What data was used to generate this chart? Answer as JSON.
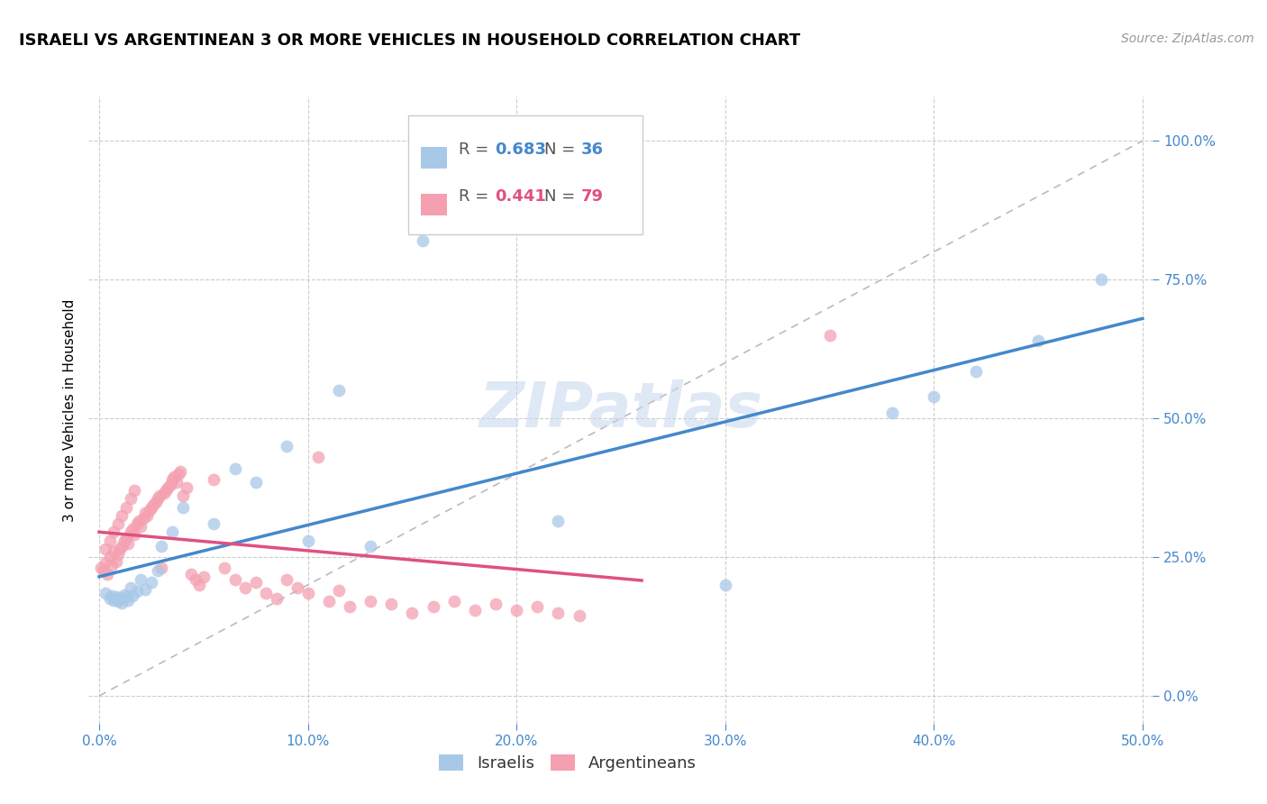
{
  "title": "ISRAELI VS ARGENTINEAN 3 OR MORE VEHICLES IN HOUSEHOLD CORRELATION CHART",
  "source": "Source: ZipAtlas.com",
  "ylabel": "3 or more Vehicles in Household",
  "watermark": "ZIPatlas",
  "xlim": [
    -0.005,
    0.505
  ],
  "ylim": [
    -0.05,
    1.08
  ],
  "x_ticks": [
    0.0,
    0.1,
    0.2,
    0.3,
    0.4,
    0.5
  ],
  "x_tick_labels": [
    "0.0%",
    "10.0%",
    "20.0%",
    "30.0%",
    "40.0%",
    "50.0%"
  ],
  "y_ticks": [
    0.0,
    0.25,
    0.5,
    0.75,
    1.0
  ],
  "y_tick_labels": [
    "0.0%",
    "25.0%",
    "50.0%",
    "75.0%",
    "100.0%"
  ],
  "israelis_R": 0.683,
  "israelis_N": 36,
  "argentineans_R": 0.441,
  "argentineans_N": 79,
  "israeli_color": "#a8c8e8",
  "argentinean_color": "#f4a0b0",
  "israeli_line_color": "#4488cc",
  "argentinean_line_color": "#e05080",
  "diagonal_color": "#bbbbbb",
  "title_fontsize": 13,
  "source_fontsize": 10,
  "axis_label_fontsize": 11,
  "tick_fontsize": 11,
  "legend_fontsize": 13,
  "watermark_fontsize": 50,
  "israelis_x": [
    0.003,
    0.005,
    0.006,
    0.007,
    0.008,
    0.009,
    0.01,
    0.011,
    0.012,
    0.013,
    0.014,
    0.015,
    0.016,
    0.018,
    0.02,
    0.022,
    0.025,
    0.028,
    0.03,
    0.035,
    0.04,
    0.055,
    0.065,
    0.075,
    0.09,
    0.1,
    0.115,
    0.13,
    0.155,
    0.22,
    0.3,
    0.38,
    0.4,
    0.42,
    0.45,
    0.48
  ],
  "israelis_y": [
    0.185,
    0.175,
    0.18,
    0.172,
    0.178,
    0.17,
    0.175,
    0.168,
    0.182,
    0.178,
    0.172,
    0.195,
    0.18,
    0.188,
    0.21,
    0.192,
    0.205,
    0.225,
    0.27,
    0.295,
    0.34,
    0.31,
    0.41,
    0.385,
    0.45,
    0.28,
    0.55,
    0.27,
    0.82,
    0.315,
    0.2,
    0.51,
    0.54,
    0.585,
    0.64,
    0.75
  ],
  "argentineans_x": [
    0.001,
    0.002,
    0.003,
    0.004,
    0.005,
    0.006,
    0.007,
    0.008,
    0.009,
    0.01,
    0.011,
    0.012,
    0.013,
    0.014,
    0.015,
    0.016,
    0.017,
    0.018,
    0.019,
    0.02,
    0.021,
    0.022,
    0.023,
    0.024,
    0.025,
    0.026,
    0.027,
    0.028,
    0.029,
    0.03,
    0.031,
    0.032,
    0.033,
    0.034,
    0.035,
    0.036,
    0.037,
    0.038,
    0.039,
    0.04,
    0.042,
    0.044,
    0.046,
    0.048,
    0.05,
    0.055,
    0.06,
    0.065,
    0.07,
    0.075,
    0.08,
    0.085,
    0.09,
    0.095,
    0.1,
    0.105,
    0.11,
    0.115,
    0.12,
    0.13,
    0.14,
    0.15,
    0.16,
    0.17,
    0.18,
    0.19,
    0.2,
    0.21,
    0.22,
    0.23,
    0.003,
    0.005,
    0.007,
    0.009,
    0.011,
    0.013,
    0.015,
    0.017,
    0.35
  ],
  "argentineans_y": [
    0.23,
    0.225,
    0.24,
    0.22,
    0.25,
    0.235,
    0.26,
    0.242,
    0.255,
    0.265,
    0.27,
    0.28,
    0.285,
    0.275,
    0.295,
    0.3,
    0.29,
    0.31,
    0.315,
    0.305,
    0.32,
    0.33,
    0.325,
    0.335,
    0.34,
    0.345,
    0.35,
    0.355,
    0.36,
    0.23,
    0.365,
    0.37,
    0.375,
    0.38,
    0.39,
    0.395,
    0.385,
    0.4,
    0.405,
    0.36,
    0.375,
    0.22,
    0.21,
    0.2,
    0.215,
    0.39,
    0.23,
    0.21,
    0.195,
    0.205,
    0.185,
    0.175,
    0.21,
    0.195,
    0.185,
    0.43,
    0.17,
    0.19,
    0.16,
    0.17,
    0.165,
    0.15,
    0.16,
    0.17,
    0.155,
    0.165,
    0.155,
    0.16,
    0.15,
    0.145,
    0.265,
    0.28,
    0.295,
    0.31,
    0.325,
    0.34,
    0.355,
    0.37,
    0.65
  ]
}
